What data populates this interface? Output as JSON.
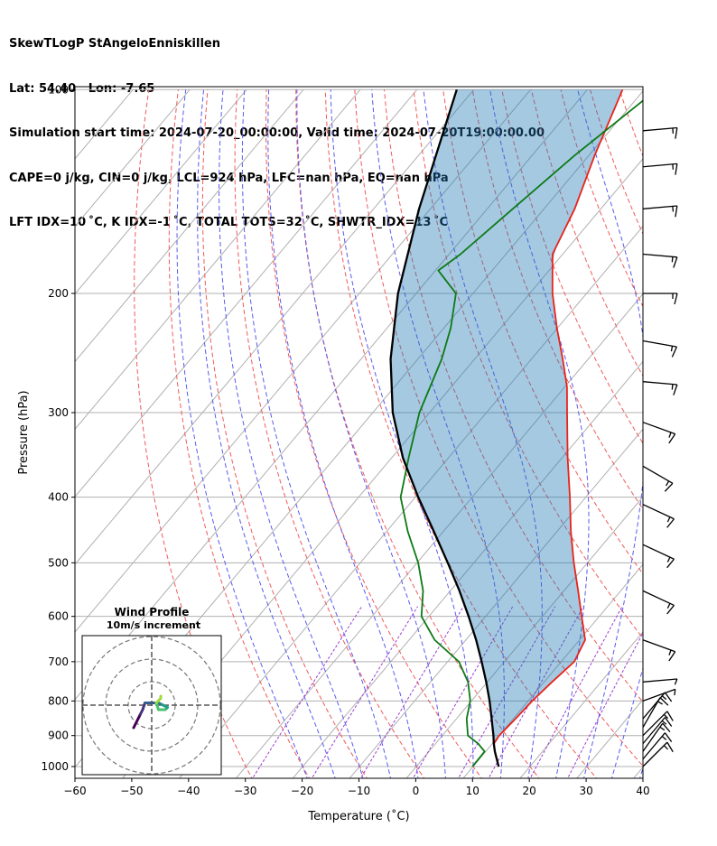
{
  "header": {
    "line1": "SkewTLogP StAngeloEnniskillen",
    "line2": "Lat: 54.40   Lon: -7.65",
    "line3": "Simulation start time: 2024-07-20_00:00:00, Valid time: 2024-07-20T19:00:00.00",
    "line4": "CAPE=0 j/kg, CIN=0 j/kg, LCL=924 hPa, LFC=nan hPa, EQ=nan hPa",
    "line5": "LFT IDX=10 ˚C, K IDX=-1 ˚C, TOTAL TOTS=32 ˚C, SHWTR_IDX=13 ˚C"
  },
  "chart_data": [
    {
      "type": "line",
      "subtype": "skew-t log-p",
      "xlabel": "Temperature (˚C)",
      "ylabel": "Pressure (hPa)",
      "xlim": [
        -60,
        40
      ],
      "ylim": [
        1050,
        100
      ],
      "y_scale": "log",
      "x_ticks": [
        "−60",
        "−50",
        "−40",
        "−30",
        "−20",
        "−10",
        "0",
        "10",
        "20",
        "30",
        "40"
      ],
      "y_ticks": [
        "100",
        "200",
        "300",
        "400",
        "500",
        "600",
        "700",
        "800",
        "900",
        "1000"
      ],
      "x_tick_values": [
        -60,
        -50,
        -40,
        -30,
        -20,
        -10,
        0,
        10,
        20,
        30,
        40
      ],
      "y_tick_values": [
        100,
        200,
        300,
        400,
        500,
        600,
        700,
        800,
        900,
        1000
      ],
      "grid": true,
      "series": [
        {
          "color": "#e8231a",
          "points": [
            [
              1000,
              14.5
            ],
            [
              950,
              11.6
            ],
            [
              925,
              10.3
            ],
            [
              900,
              10.0
            ],
            [
              850,
              10.4
            ],
            [
              800,
              10.7
            ],
            [
              750,
              11.4
            ],
            [
              700,
              12.3
            ],
            [
              650,
              11.0
            ],
            [
              600,
              6.9
            ],
            [
              550,
              2.5
            ],
            [
              500,
              -2.4
            ],
            [
              450,
              -7.5
            ],
            [
              400,
              -12.8
            ],
            [
              350,
              -19.0
            ],
            [
              300,
              -25.8
            ],
            [
              275,
              -29.6
            ],
            [
              250,
              -34.5
            ],
            [
              225,
              -40.1
            ],
            [
              200,
              -46.0
            ],
            [
              175,
              -51.8
            ],
            [
              150,
              -54.6
            ],
            [
              125,
              -59.0
            ],
            [
              100,
              -63.8
            ]
          ]
        },
        {
          "color": "#0d7a16",
          "points": [
            [
              1000,
              9.9
            ],
            [
              950,
              9.8
            ],
            [
              925,
              7.5
            ],
            [
              900,
              4.5
            ],
            [
              850,
              1.8
            ],
            [
              800,
              -0.2
            ],
            [
              750,
              -3.4
            ],
            [
              700,
              -8.0
            ],
            [
              650,
              -15.5
            ],
            [
              600,
              -21.3
            ],
            [
              550,
              -24.8
            ],
            [
              500,
              -29.8
            ],
            [
              450,
              -36.2
            ],
            [
              400,
              -42.6
            ],
            [
              350,
              -47.0
            ],
            [
              300,
              -51.8
            ],
            [
              250,
              -55.8
            ],
            [
              225,
              -58.8
            ],
            [
              200,
              -63.0
            ],
            [
              185,
              -69.5
            ],
            [
              175,
              -68.0
            ],
            [
              150,
              -65.5
            ],
            [
              125,
              -62.5
            ],
            [
              100,
              -57.8
            ]
          ]
        },
        {
          "color": "#000000",
          "points": [
            [
              1000,
              14.5
            ],
            [
              950,
              11.6
            ],
            [
              924,
              10.2
            ],
            [
              900,
              9.0
            ],
            [
              850,
              6.2
            ],
            [
              800,
              3.2
            ],
            [
              750,
              -0.2
            ],
            [
              700,
              -4.0
            ],
            [
              650,
              -8.2
            ],
            [
              600,
              -13.0
            ],
            [
              550,
              -18.4
            ],
            [
              500,
              -24.6
            ],
            [
              450,
              -31.6
            ],
            [
              400,
              -39.5
            ],
            [
              350,
              -48.0
            ],
            [
              300,
              -56.5
            ],
            [
              250,
              -64.8
            ],
            [
              200,
              -73.2
            ],
            [
              150,
              -82.0
            ],
            [
              100,
              -93.0
            ]
          ]
        }
      ],
      "wind_barbs": [
        {
          "p": 1000,
          "speed": 10,
          "dir": 315
        },
        {
          "p": 975,
          "speed": 10,
          "dir": 320
        },
        {
          "p": 950,
          "speed": 10,
          "dir": 325
        },
        {
          "p": 925,
          "speed": 10,
          "dir": 320
        },
        {
          "p": 900,
          "speed": 10,
          "dir": 315
        },
        {
          "p": 875,
          "speed": 10,
          "dir": 330
        },
        {
          "p": 850,
          "speed": 10,
          "dir": 320
        },
        {
          "p": 800,
          "speed": 5,
          "dir": 290
        },
        {
          "p": 750,
          "speed": 5,
          "dir": 275
        },
        {
          "p": 650,
          "speed": 10,
          "dir": 250
        },
        {
          "p": 550,
          "speed": 10,
          "dir": 245
        },
        {
          "p": 470,
          "speed": 10,
          "dir": 245
        },
        {
          "p": 410,
          "speed": 10,
          "dir": 245
        },
        {
          "p": 360,
          "speed": 10,
          "dir": 240
        },
        {
          "p": 310,
          "speed": 10,
          "dir": 250
        },
        {
          "p": 270,
          "speed": 10,
          "dir": 265
        },
        {
          "p": 235,
          "speed": 10,
          "dir": 260
        },
        {
          "p": 200,
          "speed": 10,
          "dir": 270
        },
        {
          "p": 175,
          "speed": 10,
          "dir": 265
        },
        {
          "p": 150,
          "speed": 10,
          "dir": 275
        },
        {
          "p": 130,
          "speed": 10,
          "dir": 275
        },
        {
          "p": 115,
          "speed": 10,
          "dir": 275
        }
      ]
    },
    {
      "type": "scatter",
      "subtype": "hodograph",
      "title": "Wind Profile",
      "subtitle": "10m/s increment",
      "ring_step": 10,
      "grid": true,
      "points": [
        [
          -8,
          -10
        ],
        [
          -6,
          -6
        ],
        [
          -5,
          -4
        ],
        [
          -4,
          -2
        ],
        [
          -3,
          1
        ],
        [
          0,
          1
        ],
        [
          3,
          1
        ],
        [
          5,
          0
        ],
        [
          7,
          -1
        ],
        [
          6,
          -2
        ],
        [
          3,
          -2
        ],
        [
          2,
          1
        ],
        [
          4,
          3
        ],
        [
          4,
          4
        ]
      ]
    }
  ]
}
